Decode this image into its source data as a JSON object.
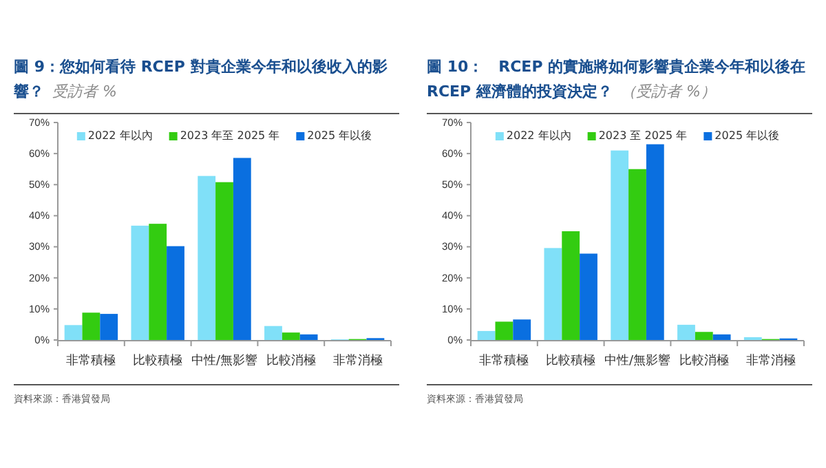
{
  "chart_data": [
    {
      "type": "bar",
      "title": "圖 9：您如何看待 RCEP 對貴企業今年和以後收入的影響？",
      "subtitle": "受訪者 %",
      "categories": [
        "非常積極",
        "比較積極",
        "中性/無影響",
        "比較消極",
        "非常消極"
      ],
      "series": [
        {
          "name": "2022 年以內",
          "color": "#80e0f8",
          "values": [
            4.8,
            36.8,
            52.8,
            4.5,
            0.2
          ]
        },
        {
          "name": "2023 年至 2025 年",
          "color": "#33cc11",
          "values": [
            8.8,
            37.4,
            50.8,
            2.4,
            0.3
          ]
        },
        {
          "name": "2025 年以後",
          "color": "#0a6fe0",
          "values": [
            8.4,
            30.2,
            58.6,
            1.8,
            0.6
          ]
        }
      ],
      "ylim": [
        0,
        70
      ],
      "yticks": [
        {
          "value": 0,
          "label": "0%"
        },
        {
          "value": 10,
          "label": "10%"
        },
        {
          "value": 20,
          "label": "20%"
        },
        {
          "value": 30,
          "label": "30%"
        },
        {
          "value": 40,
          "label": "40%"
        },
        {
          "value": 50,
          "label": "50%"
        },
        {
          "value": 60,
          "label": "60%"
        },
        {
          "value": 70,
          "label": "70%"
        }
      ],
      "legend": "top",
      "annotations": [
        "資料來源：香港貿發局"
      ]
    },
    {
      "type": "bar",
      "title": "圖 10：　RCEP 的實施將如何影響貴企業今年和以後在 RCEP 經濟體的投資決定？",
      "subtitle": "（受訪者 %）",
      "categories": [
        "非常積極",
        "比較積極",
        "中性/無影響",
        "比較消極",
        "非常消極"
      ],
      "series": [
        {
          "name": "2022 年以內",
          "color": "#80e0f8",
          "values": [
            2.9,
            29.6,
            61,
            4.9,
            0.9
          ]
        },
        {
          "name": "2023 至 2025 年",
          "color": "#33cc11",
          "values": [
            5.9,
            35,
            55,
            2.6,
            0.3
          ]
        },
        {
          "name": "2025 年以後",
          "color": "#0a6fe0",
          "values": [
            6.6,
            27.8,
            63,
            1.8,
            0.5
          ]
        }
      ],
      "ylim": [
        0,
        70
      ],
      "yticks": [
        {
          "value": 0,
          "label": "0%"
        },
        {
          "value": 10,
          "label": "10%"
        },
        {
          "value": 20,
          "label": "20%"
        },
        {
          "value": 30,
          "label": "30%"
        },
        {
          "value": 40,
          "label": "40%"
        },
        {
          "value": 50,
          "label": "50%"
        },
        {
          "value": 60,
          "label": "60%"
        },
        {
          "value": 70,
          "label": "70%"
        }
      ],
      "legend": "top",
      "annotations": [
        "資料來源：香港貿發局"
      ]
    }
  ]
}
